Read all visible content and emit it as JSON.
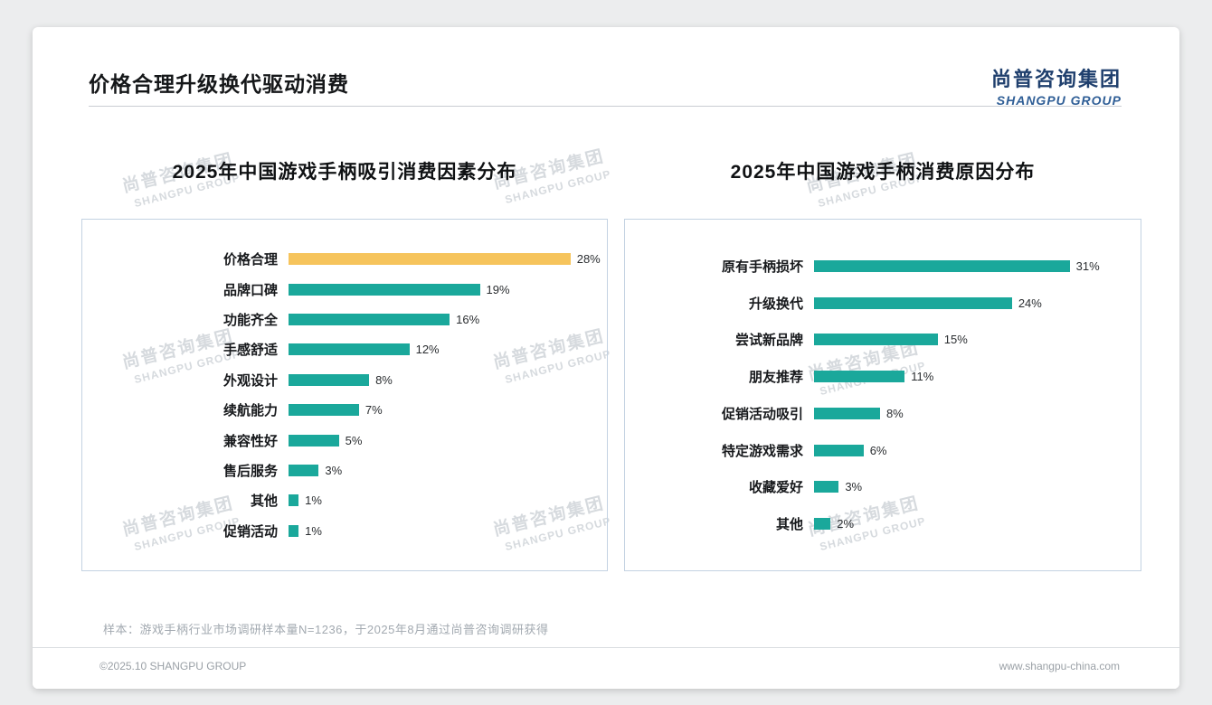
{
  "page": {
    "title": "价格合理升级换代驱动消费",
    "logo": {
      "cn": "尚普咨询集团",
      "en": "SHANGPU GROUP"
    },
    "watermark": {
      "cn": "尚普咨询集团",
      "en": "SHANGPU GROUP"
    },
    "footnote": "样本：游戏手柄行业市场调研样本量N=1236，于2025年8月通过尚普咨询调研获得",
    "footer_left": "©2025.10 SHANGPU GROUP",
    "footer_right": "www.shangpu-china.com"
  },
  "colors": {
    "bar_teal": "#1aa89b",
    "bar_yellow": "#f6c45c",
    "logo_navy": "#20406e",
    "box_border": "#c3d2e2"
  },
  "chart_data": [
    {
      "type": "bar",
      "orientation": "horizontal",
      "title": "2025年中国游戏手柄吸引消费因素分布",
      "categories": [
        "价格合理",
        "品牌口碑",
        "功能齐全",
        "手感舒适",
        "外观设计",
        "续航能力",
        "兼容性好",
        "售后服务",
        "其他",
        "促销活动"
      ],
      "values": [
        28,
        19,
        16,
        12,
        8,
        7,
        5,
        3,
        1,
        1
      ],
      "unit": "%",
      "xlim": [
        0,
        30
      ],
      "bar_color": "#1aa89b",
      "highlight_index": 0,
      "highlight_color": "#f6c45c",
      "legend": "none",
      "grid": false
    },
    {
      "type": "bar",
      "orientation": "horizontal",
      "title": "2025年中国游戏手柄消费原因分布",
      "categories": [
        "原有手柄损坏",
        "升级换代",
        "尝试新品牌",
        "朋友推荐",
        "促销活动吸引",
        "特定游戏需求",
        "收藏爱好",
        "其他"
      ],
      "values": [
        31,
        24,
        15,
        11,
        8,
        6,
        3,
        2
      ],
      "unit": "%",
      "xlim": [
        0,
        34
      ],
      "bar_color": "#1aa89b",
      "legend": "none",
      "grid": false
    }
  ]
}
